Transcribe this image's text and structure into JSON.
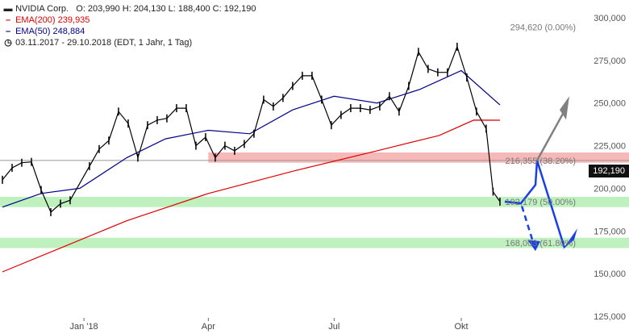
{
  "legend": {
    "title": "NVIDIA Corp.",
    "ohlc": "O: 203,990  H: 204,130  L: 188,400  C: 192,190",
    "ema200_label": "EMA(200)",
    "ema200_value": "239,935",
    "ema50_label": "EMA(50)",
    "ema50_value": "248,884",
    "period": "03.11.2017 - 29.10.2018",
    "period_info": "(EDT, 1 Jahr, 1 Tag)"
  },
  "colors": {
    "ema200": "#e00000",
    "ema50": "#00008b",
    "fib_red_zone": "#f4a0a0",
    "green_zone": "#a8eca8",
    "arrow_blue": "#1a3ee8",
    "arrow_grey": "#808080",
    "candle": "#000000",
    "last_bg": "#111111"
  },
  "chart_data": {
    "type": "candlestick",
    "title": "NVIDIA Corp.",
    "ylim": [
      125000,
      300000
    ],
    "y_ticks": [
      "125,000",
      "150,000",
      "175,000",
      "200,000",
      "225,000",
      "250,000",
      "275,000",
      "300,000"
    ],
    "y_tick_values": [
      125000,
      150000,
      175000,
      200000,
      225000,
      250000,
      275000,
      300000
    ],
    "x_ticks": [
      "Jan '18",
      "Apr",
      "Jul",
      "Okt"
    ],
    "x_tick_dates": [
      "2018-01-01",
      "2018-04-01",
      "2018-07-01",
      "2018-10-01"
    ],
    "x_range": [
      "2017-11-03",
      "2018-10-29"
    ],
    "grid": false,
    "last_price": "192,190",
    "close_series": [
      {
        "date": "2017-11-03",
        "close": 205000
      },
      {
        "date": "2017-11-10",
        "close": 212000
      },
      {
        "date": "2017-11-17",
        "close": 215000
      },
      {
        "date": "2017-11-24",
        "close": 215500
      },
      {
        "date": "2017-12-01",
        "close": 199000
      },
      {
        "date": "2017-12-08",
        "close": 186000
      },
      {
        "date": "2017-12-15",
        "close": 191000
      },
      {
        "date": "2017-12-22",
        "close": 193000
      },
      {
        "date": "2018-01-05",
        "close": 213000
      },
      {
        "date": "2018-01-12",
        "close": 223000
      },
      {
        "date": "2018-01-19",
        "close": 228000
      },
      {
        "date": "2018-01-26",
        "close": 245000
      },
      {
        "date": "2018-02-02",
        "close": 238000
      },
      {
        "date": "2018-02-09",
        "close": 218000
      },
      {
        "date": "2018-02-16",
        "close": 237000
      },
      {
        "date": "2018-02-23",
        "close": 240000
      },
      {
        "date": "2018-03-02",
        "close": 241000
      },
      {
        "date": "2018-03-09",
        "close": 247000
      },
      {
        "date": "2018-03-16",
        "close": 247000
      },
      {
        "date": "2018-03-23",
        "close": 225000
      },
      {
        "date": "2018-03-30",
        "close": 230000
      },
      {
        "date": "2018-04-06",
        "close": 218000
      },
      {
        "date": "2018-04-13",
        "close": 225000
      },
      {
        "date": "2018-04-20",
        "close": 222000
      },
      {
        "date": "2018-04-27",
        "close": 226000
      },
      {
        "date": "2018-05-04",
        "close": 232000
      },
      {
        "date": "2018-05-11",
        "close": 252000
      },
      {
        "date": "2018-05-18",
        "close": 248000
      },
      {
        "date": "2018-05-25",
        "close": 253000
      },
      {
        "date": "2018-06-01",
        "close": 260000
      },
      {
        "date": "2018-06-08",
        "close": 266000
      },
      {
        "date": "2018-06-15",
        "close": 266000
      },
      {
        "date": "2018-06-22",
        "close": 252000
      },
      {
        "date": "2018-06-29",
        "close": 237000
      },
      {
        "date": "2018-07-06",
        "close": 243000
      },
      {
        "date": "2018-07-13",
        "close": 247000
      },
      {
        "date": "2018-07-20",
        "close": 247000
      },
      {
        "date": "2018-07-27",
        "close": 246000
      },
      {
        "date": "2018-08-03",
        "close": 248000
      },
      {
        "date": "2018-08-10",
        "close": 254000
      },
      {
        "date": "2018-08-17",
        "close": 245000
      },
      {
        "date": "2018-08-24",
        "close": 260000
      },
      {
        "date": "2018-08-31",
        "close": 280000
      },
      {
        "date": "2018-09-07",
        "close": 270000
      },
      {
        "date": "2018-09-14",
        "close": 268000
      },
      {
        "date": "2018-09-21",
        "close": 268000
      },
      {
        "date": "2018-09-28",
        "close": 283000
      },
      {
        "date": "2018-10-05",
        "close": 265000
      },
      {
        "date": "2018-10-12",
        "close": 245000
      },
      {
        "date": "2018-10-19",
        "close": 235000
      },
      {
        "date": "2018-10-24",
        "close": 198000
      },
      {
        "date": "2018-10-29",
        "close": 192190
      }
    ],
    "ema200_series": [
      {
        "date": "2017-11-03",
        "value": 151000
      },
      {
        "date": "2017-12-15",
        "value": 165000
      },
      {
        "date": "2018-02-01",
        "value": 181000
      },
      {
        "date": "2018-04-01",
        "value": 197000
      },
      {
        "date": "2018-06-01",
        "value": 210000
      },
      {
        "date": "2018-08-01",
        "value": 222000
      },
      {
        "date": "2018-09-15",
        "value": 231000
      },
      {
        "date": "2018-10-10",
        "value": 240000
      },
      {
        "date": "2018-10-29",
        "value": 239935
      }
    ],
    "ema50_series": [
      {
        "date": "2017-11-03",
        "value": 189000
      },
      {
        "date": "2017-12-01",
        "value": 197000
      },
      {
        "date": "2017-12-29",
        "value": 200000
      },
      {
        "date": "2018-02-01",
        "value": 218000
      },
      {
        "date": "2018-03-01",
        "value": 229000
      },
      {
        "date": "2018-04-01",
        "value": 234000
      },
      {
        "date": "2018-05-01",
        "value": 232000
      },
      {
        "date": "2018-06-01",
        "value": 246000
      },
      {
        "date": "2018-07-01",
        "value": 254000
      },
      {
        "date": "2018-08-01",
        "value": 250000
      },
      {
        "date": "2018-09-01",
        "value": 258000
      },
      {
        "date": "2018-10-01",
        "value": 269000
      },
      {
        "date": "2018-10-29",
        "value": 248884
      }
    ],
    "levels": [
      {
        "label": "294,620 (0.00%)",
        "value": 294620,
        "zone": false
      },
      {
        "label": "216,355 (38.20%)",
        "value": 216355,
        "zone": true,
        "zone_range": [
          215000,
          221000
        ],
        "zone_start": "2018-04-01",
        "color_key": "fib_red_zone"
      },
      {
        "label": "192,179 (50.00%)",
        "value": 192179,
        "zone": true,
        "zone_range": [
          189000,
          195000
        ],
        "zone_start": "2017-11-03",
        "color_key": "green_zone"
      },
      {
        "label": "168,003 (61.80%)",
        "value": 168003,
        "zone": true,
        "zone_range": [
          165000,
          171000
        ],
        "zone_start": "2017-11-03",
        "color_key": "green_zone"
      }
    ],
    "horizontal_line": {
      "value": 216355,
      "start": "2017-11-03"
    }
  }
}
